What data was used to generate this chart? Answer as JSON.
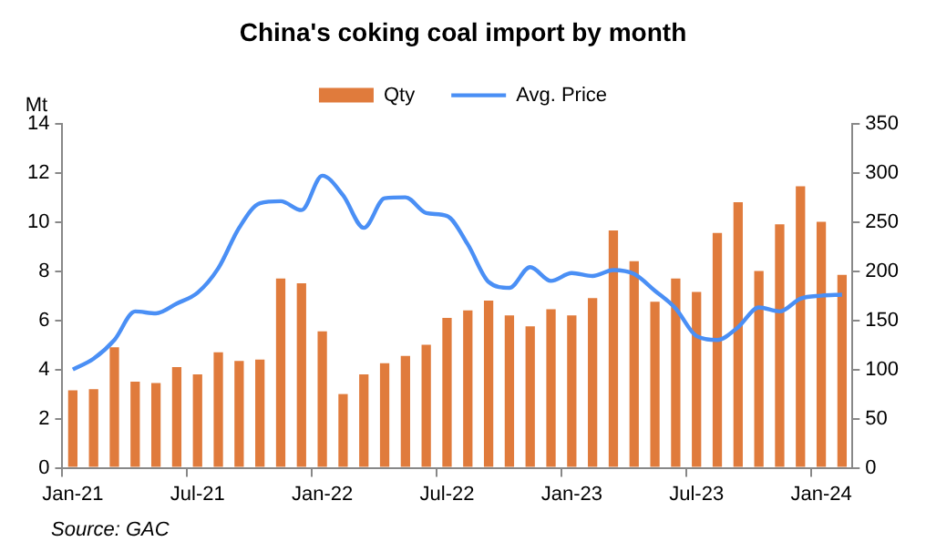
{
  "chart_data": {
    "type": "bar",
    "title": "China's coking coal import by month",
    "ylabel": "Mt",
    "categories": [
      "Jan-21",
      null,
      null,
      null,
      null,
      null,
      "Jul-21",
      null,
      null,
      null,
      null,
      null,
      "Jan-22",
      null,
      null,
      null,
      null,
      null,
      "Jul-22",
      null,
      null,
      null,
      null,
      null,
      "Jan-23",
      null,
      null,
      null,
      null,
      null,
      "Jul-23",
      null,
      null,
      null,
      null,
      null,
      "Jan-24",
      null
    ],
    "series": [
      {
        "name": "Qty",
        "color": "#e07b3c",
        "values": [
          3.15,
          3.2,
          4.9,
          3.5,
          3.45,
          4.1,
          3.8,
          4.7,
          4.35,
          4.4,
          7.7,
          7.5,
          5.55,
          3.0,
          3.8,
          4.25,
          4.55,
          5.0,
          6.1,
          6.4,
          6.8,
          6.2,
          5.75,
          6.45,
          6.2,
          6.9,
          9.65,
          8.4,
          6.75,
          7.7,
          7.15,
          9.55,
          10.8,
          8.0,
          9.9,
          11.45,
          10.0,
          7.85
        ]
      },
      {
        "name": "Avg. Price",
        "type": "line",
        "axis": "y2",
        "color": "#4a8ff5",
        "values": [
          100,
          111,
          130,
          159,
          157,
          167,
          178,
          203,
          244,
          269,
          271,
          262,
          297,
          277,
          244,
          274,
          275,
          259,
          256,
          227,
          189,
          183,
          204,
          190,
          198,
          195,
          201,
          197,
          180,
          162,
          134,
          130,
          143,
          163,
          159,
          172,
          175,
          176
        ]
      }
    ],
    "ylim": [
      0,
      14
    ],
    "yticks": [
      0,
      2,
      4,
      6,
      8,
      10,
      12,
      14
    ],
    "y2lim": [
      0,
      350
    ],
    "y2ticks": [
      0,
      50,
      100,
      150,
      200,
      250,
      300,
      350
    ],
    "grid": false,
    "legend": "top",
    "marker": "none",
    "annotations": [
      "Source: GAC"
    ]
  }
}
